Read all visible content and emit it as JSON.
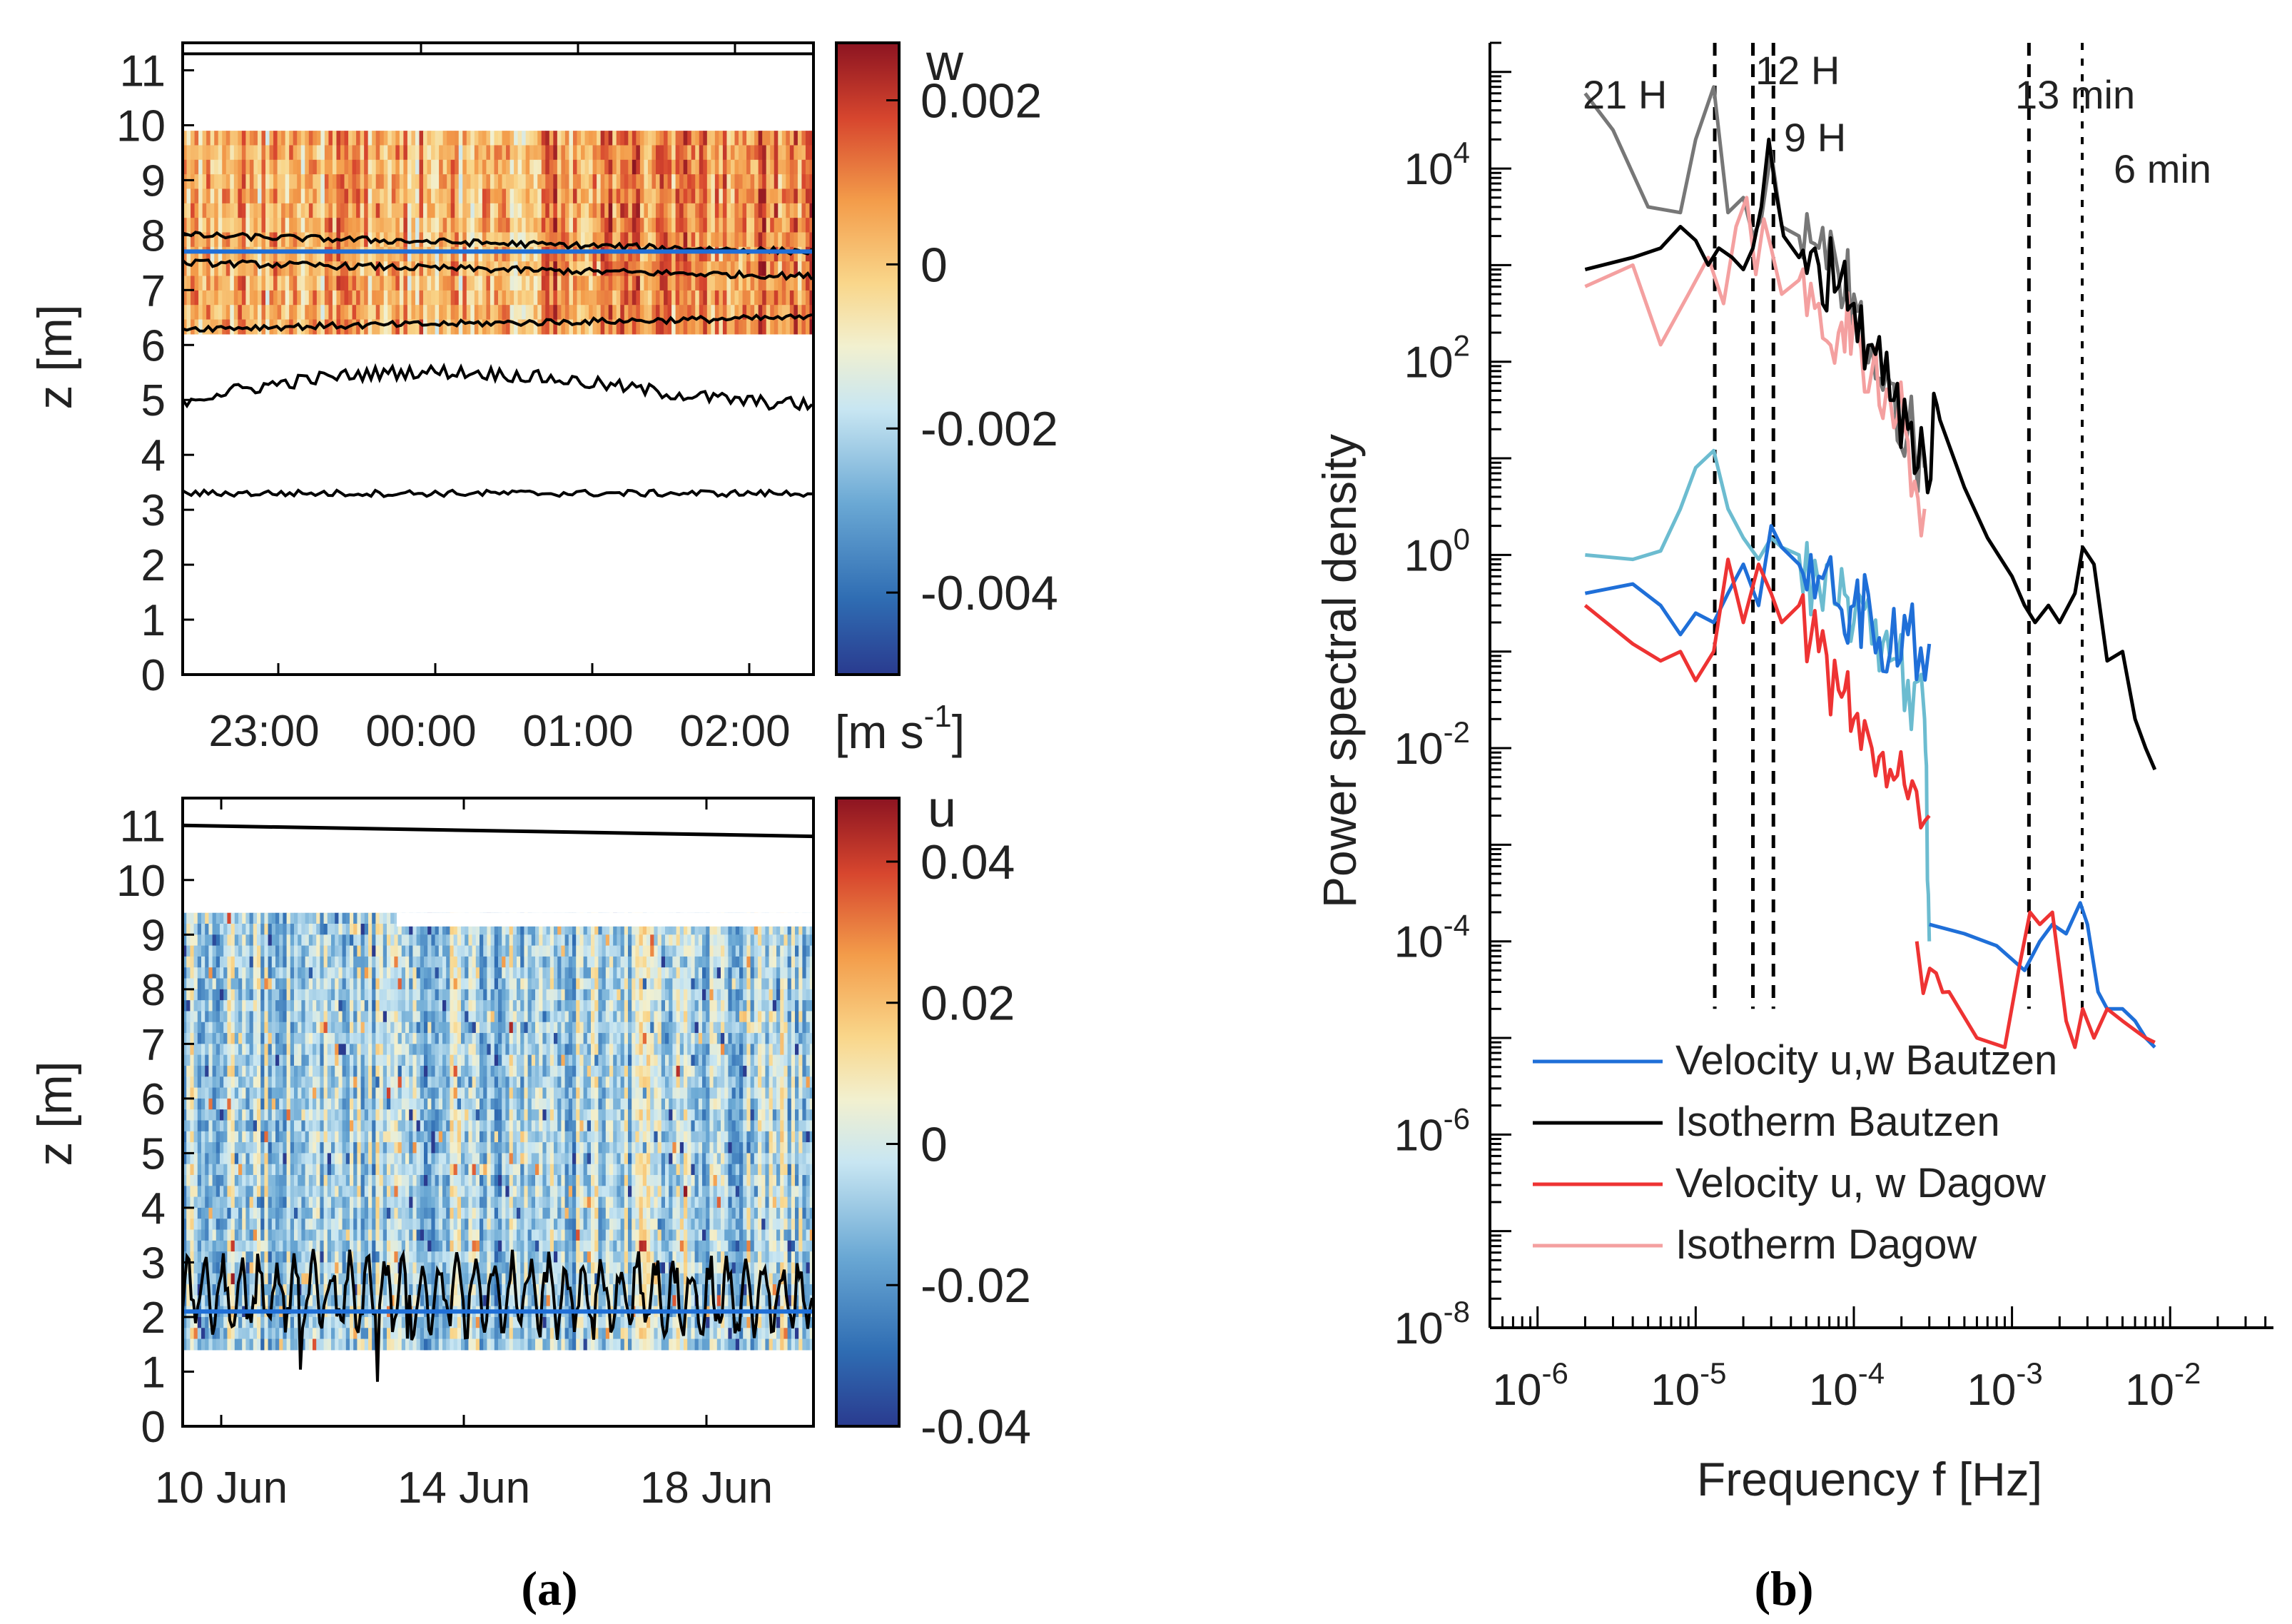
{
  "panel_a": {
    "caption": "(a)",
    "top": {
      "colorbar_label": "w",
      "colorbar_ticks": [
        "0.002",
        "0",
        "-0.002",
        "-0.004"
      ],
      "colorbar_values": [
        0.002,
        0,
        -0.002,
        -0.004
      ],
      "colorbar_range": [
        -0.005,
        0.0027
      ],
      "unit": "[m s",
      "unit_sup": "-1",
      "unit_close": "]",
      "ylabel": "z [m]",
      "yticks": [
        "0",
        "1",
        "2",
        "3",
        "4",
        "5",
        "6",
        "7",
        "8",
        "9",
        "10",
        "11"
      ],
      "xticks": [
        "23:00",
        "00:00",
        "01:00",
        "02:00"
      ]
    },
    "bottom": {
      "colorbar_label": "u",
      "colorbar_ticks": [
        "0.04",
        "0.02",
        "0",
        "-0.02",
        "-0.04"
      ],
      "colorbar_values": [
        0.04,
        0.02,
        0,
        -0.02,
        -0.04
      ],
      "colorbar_range": [
        -0.04,
        0.049
      ],
      "ylabel": "z [m]",
      "yticks": [
        "0",
        "1",
        "2",
        "3",
        "4",
        "5",
        "6",
        "7",
        "8",
        "9",
        "10",
        "11"
      ],
      "xticks": [
        "10 Jun",
        "14 Jun",
        "18 Jun"
      ]
    }
  },
  "panel_b": {
    "caption": "(b)",
    "ylabel": "Power spectral density",
    "xlabel": "Frequency f [Hz]",
    "annotations": [
      "21 H",
      "12 H",
      "9 H",
      "13 min",
      "6 min"
    ],
    "legend": [
      "Velocity u,w Bautzen",
      "Isotherm Bautzen",
      "Velocity u, w Dagow",
      "Isotherm Dagow"
    ]
  },
  "colors": {
    "velocity_bautzen": "#1f6fd8",
    "velocity_bautzen_light": "#6cbcd0",
    "isotherm_bautzen": "#000000",
    "isotherm_bautzen_grey": "#777777",
    "velocity_dagow": "#ee3333",
    "isotherm_dagow": "#f4a0a0",
    "reference_line": "#1f6fd8"
  },
  "chart_data": [
    {
      "type": "heatmap",
      "variable": "w",
      "unit": "m s-1",
      "x_ticks": [
        "23:00",
        "00:00",
        "01:00",
        "02:00"
      ],
      "ylabel": "z [m]",
      "ylim": [
        0,
        11.5
      ],
      "data_z_range": [
        6.2,
        9.9
      ],
      "color_range": [
        -0.005,
        0.0027
      ],
      "isotherm_depths_approx": [
        11.3,
        8.0,
        7.5,
        6.3,
        5.0,
        3.3
      ],
      "reference_depth": 7.7
    },
    {
      "type": "heatmap",
      "variable": "u",
      "x_ticks": [
        "10 Jun",
        "14 Jun",
        "18 Jun"
      ],
      "ylabel": "z [m]",
      "ylim": [
        0,
        11.5
      ],
      "data_z_range": [
        1.4,
        9.4
      ],
      "color_range": [
        -0.04,
        0.049
      ],
      "surface_depth_start": 11.0,
      "surface_depth_end": 10.8,
      "isotherm_mean_depth": 2.4,
      "reference_depth": 2.1
    },
    {
      "type": "line",
      "log_x": true,
      "log_y": true,
      "xlim": [
        5e-07,
        0.045
      ],
      "ylim": [
        1e-08,
        200000.0
      ],
      "xlabel": "Frequency f [Hz]",
      "ylabel": "Power spectral density",
      "vlines": [
        {
          "label": "21 H",
          "f": 1.32e-05
        },
        {
          "label": "12 H",
          "f": 2.3e-05
        },
        {
          "label": "9 H",
          "f": 3.1e-05
        },
        {
          "label": "13 min",
          "f": 0.00128
        },
        {
          "label": "6 min",
          "f": 0.00278
        }
      ],
      "series": [
        {
          "name": "Isotherm Bautzen",
          "x": [
            2e-06,
            4e-06,
            6e-06,
            8e-06,
            1e-05,
            1.2e-05,
            1.4e-05,
            1.7e-05,
            2e-05,
            2.3e-05,
            2.6e-05,
            2.9e-05,
            3.2e-05,
            3.6e-05,
            4.5e-05,
            6e-05,
            8e-05,
            0.0001,
            0.00013,
            0.00017,
            0.00022,
            0.00028,
            0.00035,
            0.0005,
            0.0007,
            0.001,
            0.0012,
            0.0014,
            0.0017,
            0.002,
            0.0025,
            0.0028,
            0.0033,
            0.004,
            0.005,
            0.006,
            0.007,
            0.008
          ],
          "y": [
            900,
            1200,
            1500,
            2500,
            1800,
            1000,
            1500,
            1200,
            900,
            1500,
            4000,
            20000,
            6000,
            2000,
            1200,
            1000,
            600,
            400,
            150,
            40,
            20,
            10,
            25,
            5,
            1.5,
            0.6,
            0.3,
            0.2,
            0.3,
            0.2,
            0.4,
            1.2,
            0.8,
            0.08,
            0.1,
            0.02,
            0.01,
            0.006
          ]
        },
        {
          "name": "Isotherm Bautzen (grey)",
          "x": [
            2e-06,
            3e-06,
            5e-06,
            8e-06,
            1e-05,
            1.3e-05,
            1.6e-05,
            2e-05,
            2.3e-05,
            2.6e-05,
            3e-05,
            3.5e-05,
            4.5e-05,
            6e-05,
            8e-05,
            0.0001,
            0.00013,
            0.00017,
            0.00022,
            0.00028
          ],
          "y": [
            60000,
            25000,
            4000,
            3500,
            20000,
            70000,
            3500,
            5000,
            2000,
            3000,
            15000,
            2500,
            2000,
            1500,
            800,
            500,
            150,
            60,
            20,
            8
          ]
        },
        {
          "name": "Isotherm Dagow",
          "x": [
            2e-06,
            4e-06,
            6e-06,
            9e-06,
            1.2e-05,
            1.5e-05,
            1.8e-05,
            2.1e-05,
            2.4e-05,
            2.7e-05,
            3e-05,
            3.5e-05,
            4.5e-05,
            6e-05,
            8e-05,
            0.0001,
            0.00013,
            0.00017,
            0.00022,
            0.00028
          ],
          "y": [
            600,
            1000,
            150,
            500,
            1200,
            400,
            2500,
            5000,
            800,
            3000,
            1500,
            500,
            700,
            400,
            200,
            300,
            80,
            40,
            15,
            3
          ]
        },
        {
          "name": "Velocity u,w Bautzen",
          "x": [
            2e-06,
            4e-06,
            6e-06,
            8e-06,
            1e-05,
            1.3e-05,
            1.6e-05,
            2e-05,
            2.5e-05,
            3e-05,
            3.5e-05,
            4.5e-05,
            6e-05,
            8e-05,
            0.0001,
            0.00013,
            0.00017,
            0.00022,
            0.0003
          ],
          "y": [
            0.4,
            0.5,
            0.3,
            0.15,
            0.25,
            0.2,
            0.4,
            0.8,
            0.3,
            2,
            1.2,
            0.8,
            0.6,
            0.3,
            0.3,
            0.2,
            0.1,
            0.15,
            0.12
          ]
        },
        {
          "name": "Velocity u,w Bautzen (light)",
          "x": [
            2e-06,
            4e-06,
            6e-06,
            8e-06,
            1e-05,
            1.3e-05,
            1.6e-05,
            2e-05,
            2.5e-05,
            3e-05,
            3.5e-05,
            4.5e-05,
            6e-05,
            8e-05,
            0.0001,
            0.00013,
            0.00017,
            0.00022,
            0.00028,
            0.0003
          ],
          "y": [
            1,
            0.9,
            1.1,
            3,
            8,
            12,
            3,
            1.5,
            0.9,
            1.5,
            1.2,
            1,
            0.5,
            0.3,
            0.2,
            0.12,
            0.08,
            0.05,
            0.02,
            0.0001
          ]
        },
        {
          "name": "Velocity u, w Dagow",
          "x": [
            2e-06,
            4e-06,
            6e-06,
            8e-06,
            1e-05,
            1.3e-05,
            1.6e-05,
            2e-05,
            2.5e-05,
            3e-05,
            3.5e-05,
            4.5e-05,
            6e-05,
            8e-05,
            0.0001,
            0.00013,
            0.00017,
            0.00022,
            0.0003
          ],
          "y": [
            0.3,
            0.12,
            0.08,
            0.1,
            0.05,
            0.1,
            0.9,
            0.2,
            0.8,
            0.4,
            0.2,
            0.3,
            0.1,
            0.04,
            0.02,
            0.01,
            0.006,
            0.003,
            0.002
          ]
        },
        {
          "name": "Velocity u,w Bautzen (HF)",
          "x": [
            0.0003,
            0.0005,
            0.0008,
            0.0012,
            0.0015,
            0.0018,
            0.0022,
            0.0027,
            0.003,
            0.0035,
            0.004,
            0.005,
            0.006,
            0.007,
            0.008
          ],
          "y": [
            0.00015,
            0.00012,
            9e-05,
            5e-05,
            0.0001,
            0.00015,
            0.00012,
            0.00025,
            0.00015,
            3e-05,
            2e-05,
            2e-05,
            1.5e-05,
            1e-05,
            8e-06
          ]
        },
        {
          "name": "Velocity u, w Dagow (HF)",
          "x": [
            0.00025,
            0.0004,
            0.0006,
            0.0009,
            0.0011,
            0.0013,
            0.0015,
            0.0018,
            0.0022,
            0.0025,
            0.0028,
            0.0033,
            0.004,
            0.005,
            0.006,
            0.007,
            0.008
          ],
          "y": [
            0.0001,
            3e-05,
            1e-05,
            8e-06,
            5e-05,
            0.0002,
            0.00015,
            0.0002,
            1.5e-05,
            8e-06,
            2e-05,
            1e-05,
            2e-05,
            1.5e-05,
            1.2e-05,
            1e-05,
            9e-06
          ]
        }
      ]
    }
  ]
}
